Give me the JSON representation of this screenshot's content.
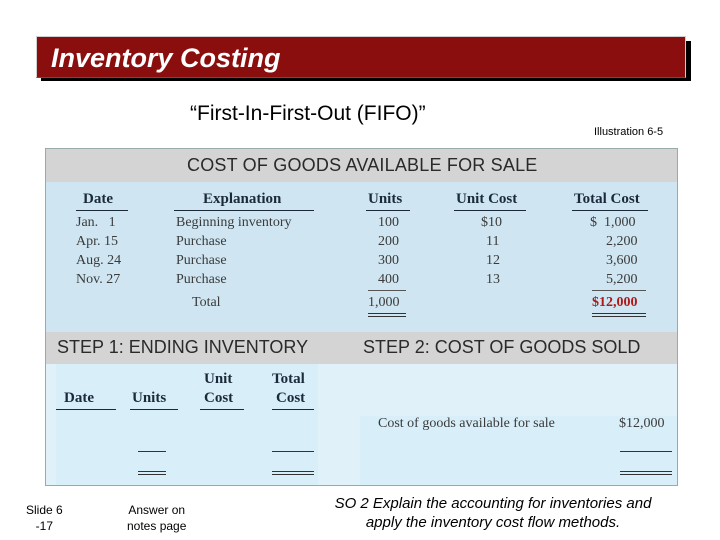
{
  "title": "Inventory Costing",
  "subtitle": "“First-In-First-Out (FIFO)”",
  "illustration": "Illustration 6-5",
  "cogs": {
    "header": "COST OF GOODS AVAILABLE FOR SALE",
    "columns": [
      "Date",
      "Explanation",
      "Units",
      "Unit Cost",
      "Total Cost"
    ],
    "rows": [
      {
        "date": "Jan.   1",
        "explanation": "Beginning inventory",
        "units": "100",
        "unit_cost": "$10",
        "total_cost": "$  1,000"
      },
      {
        "date": "Apr. 15",
        "explanation": "Purchase",
        "units": "200",
        "unit_cost": "11",
        "total_cost": "2,200"
      },
      {
        "date": "Aug. 24",
        "explanation": "Purchase",
        "units": "300",
        "unit_cost": "12",
        "total_cost": "3,600"
      },
      {
        "date": "Nov. 27",
        "explanation": "Purchase",
        "units": "400",
        "unit_cost": "13",
        "total_cost": "5,200"
      }
    ],
    "total_label": "Total",
    "total_units": "1,000",
    "total_cost": "$12,000"
  },
  "step1": {
    "header": "STEP 1: ENDING INVENTORY",
    "columns": [
      "Date",
      "Units",
      "Unit\nCost",
      "Total\nCost"
    ],
    "unit_line1": "Unit",
    "unit_line2": "Cost",
    "total_line1": "Total",
    "total_line2": "Cost"
  },
  "step2": {
    "header": "STEP 2: COST OF GOODS SOLD",
    "label": "Cost of goods available for sale",
    "value": "$12,000"
  },
  "footer": {
    "slide_line1": "Slide 6",
    "slide_line2": "-17",
    "answer_line1": "Answer on",
    "answer_line2": "notes page",
    "so_line1": "SO 2  Explain the accounting for inventories and",
    "so_line2": "apply the inventory cost flow methods."
  },
  "colors": {
    "title_bar": "#8b0e0e",
    "header_gray": "#d4d4d4",
    "table_blue": "#cfe6f2",
    "accent_red": "#b01818"
  }
}
